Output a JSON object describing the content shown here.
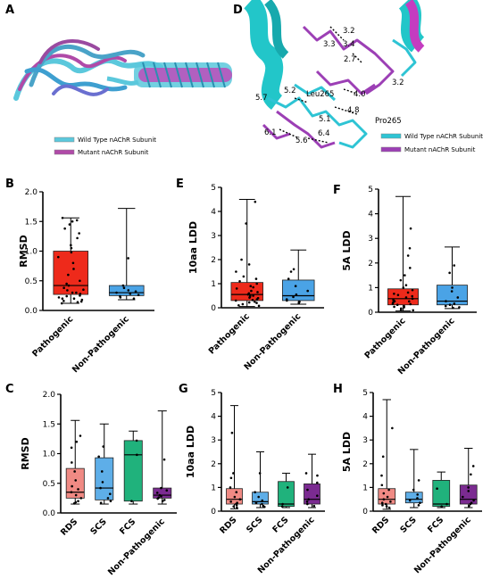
{
  "panels": {
    "A": "A",
    "B": "B",
    "C": "C",
    "D": "D",
    "E": "E",
    "F": "F",
    "G": "G",
    "H": "H"
  },
  "structure_a": {
    "legend": [
      "Wild Type nAChR Subunit",
      "Mutant nAChR Subunit"
    ],
    "colors": {
      "wild_type": "#5bc8dc",
      "mutant": "#b04aa8"
    }
  },
  "structure_d": {
    "legend": [
      "Wild Type nAChR Subunit",
      "Mutant nAChR Subunit"
    ],
    "residues": [
      "Leu265",
      "Pro265"
    ],
    "distances": [
      "3.2",
      "3.3",
      "3.4",
      "2.7",
      "3.2",
      "5.7",
      "5.2",
      "4.0",
      "4.8",
      "5.1",
      "6.1",
      "5.6",
      "6.4"
    ],
    "colors": {
      "wild_type": "#2ec4d4",
      "mutant": "#9c3fb5",
      "helix_wt": "#22c6c9",
      "helix_mut": "#c43cc0"
    }
  },
  "chart_data": [
    {
      "id": "B",
      "type": "box",
      "ylabel": "RMSD",
      "ylim": [
        0,
        2.0
      ],
      "yticks": [
        "0.0",
        "0.5",
        "1.0",
        "1.5",
        "2.0"
      ],
      "categories": [
        "Pathogenic",
        "Non-Pathogenic"
      ],
      "colors": [
        "#ee2a1b",
        "#4aa3e6"
      ],
      "boxes": [
        {
          "min": 0.12,
          "q1": 0.27,
          "median": 0.42,
          "q3": 1.0,
          "max": 1.56,
          "points": [
            1.56,
            1.52,
            1.5,
            1.45,
            1.38,
            1.3,
            1.22,
            1.1,
            1.05,
            0.98,
            0.9,
            0.8,
            0.7,
            0.6,
            0.5,
            0.45,
            0.42,
            0.38,
            0.35,
            0.3,
            0.28,
            0.25,
            0.22,
            0.2,
            0.18,
            0.16,
            0.14,
            0.12,
            0.15,
            0.2,
            0.24,
            0.3,
            0.34
          ]
        },
        {
          "min": 0.18,
          "q1": 0.25,
          "median": 0.3,
          "q3": 0.42,
          "max": 1.72,
          "points": [
            0.88,
            0.42,
            0.38,
            0.34,
            0.3,
            0.28,
            0.26,
            0.24,
            0.22,
            0.2,
            0.32
          ]
        }
      ]
    },
    {
      "id": "E",
      "type": "box",
      "ylabel": "10aa LDD",
      "ylim": [
        0,
        5
      ],
      "yticks": [
        "0",
        "1",
        "2",
        "3",
        "4",
        "5"
      ],
      "categories": [
        "Pathogenic",
        "Non-Pathogenic"
      ],
      "colors": [
        "#ee2a1b",
        "#4aa3e6"
      ],
      "boxes": [
        {
          "min": 0.05,
          "q1": 0.3,
          "median": 0.55,
          "q3": 1.05,
          "max": 4.5,
          "points": [
            4.4,
            3.5,
            2.0,
            1.8,
            1.5,
            1.3,
            1.2,
            1.1,
            1.0,
            0.9,
            0.85,
            0.8,
            0.7,
            0.65,
            0.6,
            0.55,
            0.5,
            0.45,
            0.4,
            0.35,
            0.3,
            0.25,
            0.2,
            0.15,
            0.1,
            0.08,
            0.22,
            0.32,
            0.42,
            0.5
          ]
        },
        {
          "min": 0.15,
          "q1": 0.3,
          "median": 0.5,
          "q3": 1.15,
          "max": 2.4,
          "points": [
            1.6,
            1.5,
            1.2,
            0.9,
            0.7,
            0.55,
            0.45,
            0.35,
            0.3,
            0.25,
            0.2
          ]
        }
      ]
    },
    {
      "id": "F",
      "type": "box",
      "ylabel": "5A LDD",
      "ylim": [
        0,
        5
      ],
      "yticks": [
        "0",
        "1",
        "2",
        "3",
        "4",
        "5"
      ],
      "categories": [
        "Pathogenic",
        "Non-Pathogenic"
      ],
      "colors": [
        "#ee2a1b",
        "#4aa3e6"
      ],
      "boxes": [
        {
          "min": 0.05,
          "q1": 0.3,
          "median": 0.55,
          "q3": 0.95,
          "max": 4.7,
          "points": [
            3.4,
            2.6,
            2.3,
            1.8,
            1.5,
            1.3,
            1.1,
            1.0,
            0.9,
            0.8,
            0.75,
            0.7,
            0.65,
            0.6,
            0.55,
            0.5,
            0.45,
            0.4,
            0.35,
            0.3,
            0.25,
            0.2,
            0.15,
            0.1,
            0.08,
            0.22,
            0.33,
            0.44
          ]
        },
        {
          "min": 0.15,
          "q1": 0.3,
          "median": 0.45,
          "q3": 1.1,
          "max": 2.65,
          "points": [
            1.9,
            1.6,
            1.0,
            0.85,
            0.6,
            0.45,
            0.35,
            0.3,
            0.25,
            0.2,
            0.18
          ]
        }
      ]
    },
    {
      "id": "C",
      "type": "box",
      "ylabel": "RMSD",
      "ylim": [
        0,
        2.0
      ],
      "yticks": [
        "0.0",
        "0.5",
        "1.0",
        "1.5",
        "2.0"
      ],
      "categories": [
        "RDS",
        "SCS",
        "FCS",
        "Non-Pathogenic"
      ],
      "colors": [
        "#f08a84",
        "#5eaee8",
        "#20b27c",
        "#7b2b91"
      ],
      "boxes": [
        {
          "min": 0.15,
          "q1": 0.25,
          "median": 0.35,
          "q3": 0.75,
          "max": 1.56,
          "points": [
            1.3,
            1.2,
            1.1,
            0.85,
            0.7,
            0.55,
            0.45,
            0.4,
            0.35,
            0.3,
            0.25,
            0.2,
            0.18,
            0.16
          ]
        },
        {
          "min": 0.15,
          "q1": 0.22,
          "median": 0.42,
          "q3": 0.93,
          "max": 1.5,
          "points": [
            1.12,
            0.95,
            0.7,
            0.52,
            0.42,
            0.32,
            0.25,
            0.2,
            0.17
          ]
        },
        {
          "min": 0.15,
          "q1": 0.2,
          "median": 0.98,
          "q3": 1.22,
          "max": 1.38,
          "points": [
            1.22,
            0.98,
            0.2
          ]
        },
        {
          "min": 0.15,
          "q1": 0.25,
          "median": 0.3,
          "q3": 0.42,
          "max": 1.72,
          "points": [
            0.9,
            0.42,
            0.38,
            0.34,
            0.3,
            0.28,
            0.26,
            0.24,
            0.22,
            0.2
          ]
        }
      ]
    },
    {
      "id": "G",
      "type": "box",
      "ylabel": "10aa LDD",
      "ylim": [
        0,
        5
      ],
      "yticks": [
        "0",
        "1",
        "2",
        "3",
        "4",
        "5"
      ],
      "categories": [
        "RDS",
        "SCS",
        "FCS",
        "Non-Pathogenic"
      ],
      "colors": [
        "#f08a84",
        "#5eaee8",
        "#20b27c",
        "#7b2b91"
      ],
      "boxes": [
        {
          "min": 0.1,
          "q1": 0.3,
          "median": 0.5,
          "q3": 0.95,
          "max": 4.45,
          "points": [
            3.3,
            1.6,
            1.4,
            1.0,
            0.8,
            0.6,
            0.5,
            0.4,
            0.35,
            0.3,
            0.25,
            0.2,
            0.15
          ]
        },
        {
          "min": 0.15,
          "q1": 0.3,
          "median": 0.4,
          "q3": 0.8,
          "max": 2.5,
          "points": [
            1.6,
            0.8,
            0.6,
            0.45,
            0.35,
            0.3,
            0.22,
            0.18
          ]
        },
        {
          "min": 0.15,
          "q1": 0.2,
          "median": 0.3,
          "q3": 1.25,
          "max": 1.6,
          "points": [
            1.0,
            0.3,
            0.2
          ]
        },
        {
          "min": 0.15,
          "q1": 0.3,
          "median": 0.5,
          "q3": 1.15,
          "max": 2.4,
          "points": [
            1.6,
            1.5,
            1.2,
            0.9,
            0.65,
            0.5,
            0.4,
            0.3,
            0.22
          ]
        }
      ]
    },
    {
      "id": "H",
      "type": "box",
      "ylabel": "5A LDD",
      "ylim": [
        0,
        5
      ],
      "yticks": [
        "0",
        "1",
        "2",
        "3",
        "4",
        "5"
      ],
      "categories": [
        "RDS",
        "SCS",
        "FCS",
        "Non-Pathogenic"
      ],
      "colors": [
        "#f08a84",
        "#5eaee8",
        "#20b27c",
        "#7b2b91"
      ],
      "boxes": [
        {
          "min": 0.08,
          "q1": 0.3,
          "median": 0.5,
          "q3": 0.95,
          "max": 4.7,
          "points": [
            3.5,
            2.3,
            1.5,
            1.1,
            0.9,
            0.75,
            0.6,
            0.5,
            0.4,
            0.35,
            0.3,
            0.25,
            0.2,
            0.15
          ]
        },
        {
          "min": 0.15,
          "q1": 0.35,
          "median": 0.5,
          "q3": 0.8,
          "max": 2.6,
          "points": [
            1.3,
            0.9,
            0.7,
            0.55,
            0.45,
            0.35,
            0.25
          ]
        },
        {
          "min": 0.15,
          "q1": 0.2,
          "median": 0.3,
          "q3": 1.3,
          "max": 1.65,
          "points": [
            0.95,
            0.3,
            0.2
          ]
        },
        {
          "min": 0.15,
          "q1": 0.3,
          "median": 0.5,
          "q3": 1.1,
          "max": 2.65,
          "points": [
            1.9,
            1.55,
            1.0,
            0.85,
            0.6,
            0.45,
            0.35,
            0.3,
            0.22
          ]
        }
      ]
    }
  ]
}
